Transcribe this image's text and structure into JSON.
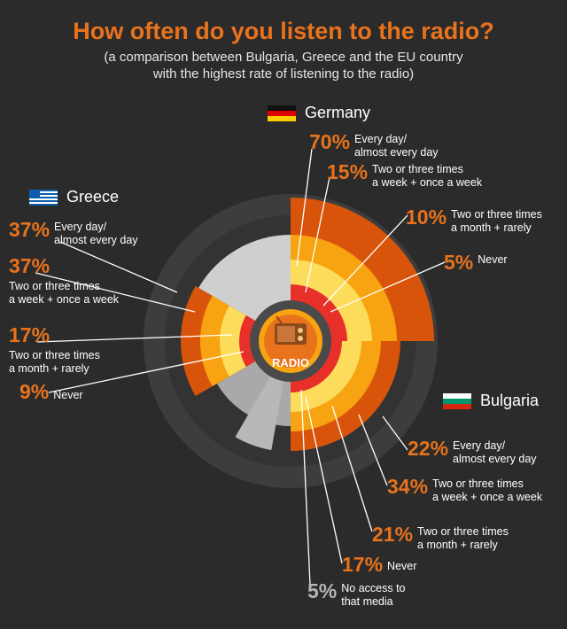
{
  "title": "How often do you listen to the radio?",
  "subtitle_line1": "(a comparison between Bulgaria, Greece and the EU country",
  "subtitle_line2": "with the highest rate of listening to the radio)",
  "center_label": "RADIO",
  "colors": {
    "every_day": "#d9540b",
    "weekly": "#f7a312",
    "monthly": "#fddc5c",
    "never": "#e8302a",
    "no_access": "#b8b8b8",
    "background": "#2b2b2b",
    "accent": "#e8731c"
  },
  "chart_data": {
    "type": "radial-stacked",
    "title": "How often do you listen to the radio?",
    "categories": [
      "Every day/ almost every day",
      "Two or three times a week + once a week",
      "Two or three times a month + rarely",
      "Never",
      "No access to that media"
    ],
    "series": [
      {
        "name": "Germany",
        "flag_icon": "germany-flag-icon",
        "values": [
          70,
          15,
          10,
          5,
          null
        ]
      },
      {
        "name": "Greece",
        "flag_icon": "greece-flag-icon",
        "values": [
          37,
          37,
          17,
          9,
          null
        ]
      },
      {
        "name": "Bulgaria",
        "flag_icon": "bulgaria-flag-icon",
        "values": [
          22,
          34,
          21,
          17,
          5
        ]
      }
    ]
  },
  "labels": {
    "germany": [
      {
        "pct": "70%",
        "l1": "Every day/",
        "l2": "almost every day"
      },
      {
        "pct": "15%",
        "l1": "Two or three times",
        "l2": "a week + once a week"
      },
      {
        "pct": "10%",
        "l1": "Two or three times",
        "l2": "a month + rarely"
      },
      {
        "pct": "5%",
        "l1": "Never",
        "l2": ""
      }
    ],
    "greece": [
      {
        "pct": "37%",
        "l1": "Every day/",
        "l2": "almost every day"
      },
      {
        "pct": "37%",
        "l1": "Two or three times",
        "l2": "a week + once a week"
      },
      {
        "pct": "17%",
        "l1": "Two or three times",
        "l2": "a month + rarely"
      },
      {
        "pct": "9%",
        "l1": "Never",
        "l2": ""
      }
    ],
    "bulgaria": [
      {
        "pct": "22%",
        "l1": "Every day/",
        "l2": "almost every day"
      },
      {
        "pct": "34%",
        "l1": "Two or three times",
        "l2": "a week + once a week"
      },
      {
        "pct": "21%",
        "l1": "Two or three times",
        "l2": "a month + rarely"
      },
      {
        "pct": "17%",
        "l1": "Never",
        "l2": ""
      },
      {
        "pct": "5%",
        "l1": "No access to",
        "l2": "that media"
      }
    ]
  }
}
